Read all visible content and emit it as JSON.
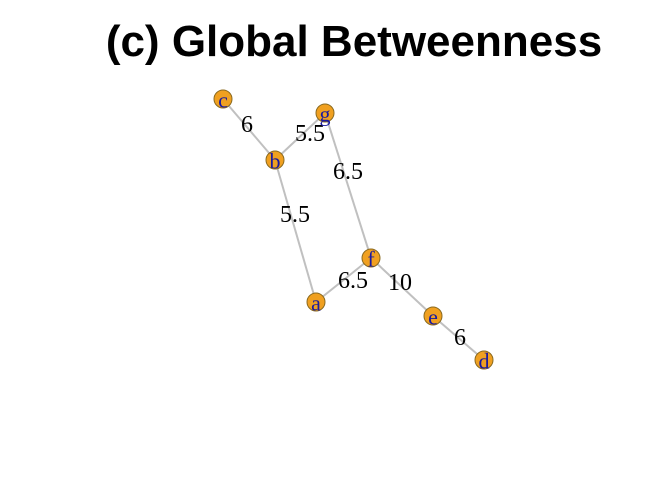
{
  "title": "(c) Global Betweenness",
  "colors": {
    "node_fill": "#f0a020",
    "node_label": "#1a1aa0",
    "edge": "#c0c0c0",
    "edge_label": "#000000"
  },
  "nodes": [
    {
      "id": "c"
    },
    {
      "id": "g"
    },
    {
      "id": "b"
    },
    {
      "id": "f"
    },
    {
      "id": "a"
    },
    {
      "id": "e"
    },
    {
      "id": "d"
    }
  ],
  "edges": [
    {
      "from": "c",
      "to": "b",
      "label": "6"
    },
    {
      "from": "g",
      "to": "b",
      "label": "5.5"
    },
    {
      "from": "g",
      "to": "f",
      "label": "6.5"
    },
    {
      "from": "b",
      "to": "a",
      "label": "5.5"
    },
    {
      "from": "a",
      "to": "f",
      "label": "6.5"
    },
    {
      "from": "f",
      "to": "e",
      "label": "10"
    },
    {
      "from": "e",
      "to": "d",
      "label": "6"
    }
  ]
}
